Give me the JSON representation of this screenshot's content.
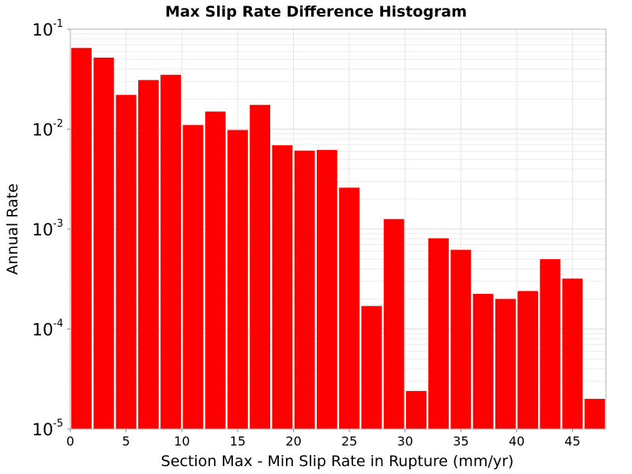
{
  "chart_data": {
    "type": "bar",
    "title": "Max Slip Rate Difference Histogram",
    "xlabel": "Section Max - Min Slip Rate in Rupture (mm/yr)",
    "ylabel": "Annual Rate",
    "yscale": "log",
    "ylim": [
      1e-05,
      0.1
    ],
    "xlim": [
      0,
      48
    ],
    "bin_width": 2,
    "x_ticks": [
      "0",
      "5",
      "10",
      "15",
      "20",
      "25",
      "30",
      "35",
      "40",
      "45"
    ],
    "y_ticks": [
      {
        "base": "10",
        "exp": "-1",
        "value": 0.1
      },
      {
        "base": "10",
        "exp": "-2",
        "value": 0.01
      },
      {
        "base": "10",
        "exp": "-3",
        "value": 0.001
      },
      {
        "base": "10",
        "exp": "-4",
        "value": 0.0001
      },
      {
        "base": "10",
        "exp": "-5",
        "value": 1e-05
      }
    ],
    "grid": true,
    "bar_color": "#ff0000",
    "x": [
      1,
      3,
      5,
      7,
      9,
      11,
      13,
      15,
      17,
      19,
      21,
      23,
      25,
      27,
      29,
      31,
      33,
      35,
      37,
      39,
      41,
      43,
      45,
      47
    ],
    "values": [
      0.065,
      0.052,
      0.022,
      0.031,
      0.035,
      0.011,
      0.015,
      0.0098,
      0.0175,
      0.0069,
      0.0061,
      0.0062,
      0.0026,
      0.00017,
      0.00126,
      2.4e-05,
      0.00081,
      0.00062,
      0.000225,
      0.0002,
      0.00024,
      0.0005,
      0.00032,
      2e-05
    ]
  }
}
